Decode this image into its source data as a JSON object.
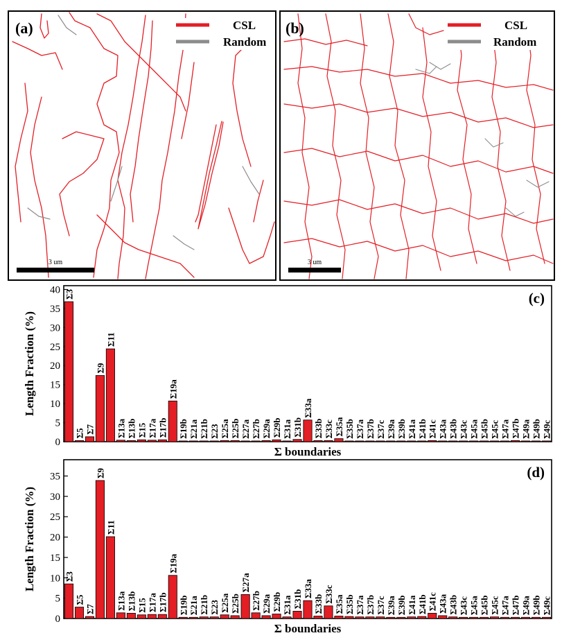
{
  "panel_a": {
    "label": "(a)",
    "legend": [
      {
        "name": "CSL",
        "color": "#e31e24"
      },
      {
        "name": "Random",
        "color": "#8c8c8c"
      }
    ],
    "scale_bar": "3 um"
  },
  "panel_b": {
    "label": "(b)",
    "legend": [
      {
        "name": "CSL",
        "color": "#e31e24"
      },
      {
        "name": "Random",
        "color": "#8c8c8c"
      }
    ],
    "scale_bar": "3 um"
  },
  "chart_data": [
    {
      "type": "bar",
      "label": "(c)",
      "xlabel": "Σ boundaries",
      "ylabel": "Length Fraction (%)",
      "ylim": [
        0,
        41
      ],
      "yticks": [
        0,
        5,
        10,
        15,
        20,
        25,
        30,
        35,
        40
      ],
      "bar_color": "#e31e24",
      "categories": [
        "Σ3",
        "Σ5",
        "Σ7",
        "Σ9",
        "Σ11",
        "Σ13a",
        "Σ13b",
        "Σ15",
        "Σ17a",
        "Σ17b",
        "Σ19a",
        "Σ19b",
        "Σ21a",
        "Σ21b",
        "Σ23",
        "Σ25a",
        "Σ25b",
        "Σ27a",
        "Σ27b",
        "Σ29a",
        "Σ29b",
        "Σ31a",
        "Σ31b",
        "Σ33a",
        "Σ33b",
        "Σ33c",
        "Σ35a",
        "Σ35b",
        "Σ37a",
        "Σ37b",
        "Σ37c",
        "Σ39a",
        "Σ39b",
        "Σ41a",
        "Σ41b",
        "Σ41c",
        "Σ43a",
        "Σ43b",
        "Σ43c",
        "Σ45a",
        "Σ45b",
        "Σ45c",
        "Σ47a",
        "Σ47b",
        "Σ49a",
        "Σ49b",
        "Σ49c"
      ],
      "values": [
        36.8,
        0.3,
        1.3,
        17.4,
        24.4,
        0.4,
        0.3,
        0.5,
        0.4,
        0.5,
        10.7,
        0.2,
        0.2,
        0.2,
        0.2,
        0.3,
        0.3,
        0.2,
        0.2,
        0.3,
        0.5,
        0.2,
        0.6,
        5.7,
        0.3,
        0.3,
        0.8,
        0.2,
        0.2,
        0.2,
        0.2,
        0.2,
        0.2,
        0.2,
        0.2,
        0.3,
        0.2,
        0.2,
        0.2,
        0.2,
        0.2,
        0.2,
        0.2,
        0.3,
        0.2,
        0.2,
        0.2
      ]
    },
    {
      "type": "bar",
      "label": "(d)",
      "xlabel": "Σ boundaries",
      "ylabel": "Length Fraction (%)",
      "ylim": [
        0,
        39
      ],
      "yticks": [
        0,
        5,
        10,
        15,
        20,
        25,
        30,
        35
      ],
      "bar_color": "#e31e24",
      "categories": [
        "Σ3",
        "Σ5",
        "Σ7",
        "Σ9",
        "Σ11",
        "Σ13a",
        "Σ13b",
        "Σ15",
        "Σ17a",
        "Σ17b",
        "Σ19a",
        "Σ19b",
        "Σ21a",
        "Σ21b",
        "Σ23",
        "Σ25a",
        "Σ25b",
        "Σ27a",
        "Σ27b",
        "Σ29a",
        "Σ29b",
        "Σ31a",
        "Σ31b",
        "Σ33a",
        "Σ33b",
        "Σ33c",
        "Σ35a",
        "Σ35b",
        "Σ37a",
        "Σ37b",
        "Σ37c",
        "Σ39a",
        "Σ39b",
        "Σ41a",
        "Σ41b",
        "Σ41c",
        "Σ43a",
        "Σ43b",
        "Σ43c",
        "Σ45a",
        "Σ45b",
        "Σ45c",
        "Σ47a",
        "Σ47b",
        "Σ49a",
        "Σ49b",
        "Σ49c"
      ],
      "values": [
        8.5,
        2.8,
        0.5,
        33.9,
        20.1,
        1.4,
        1.3,
        0.9,
        1.0,
        1.0,
        10.6,
        0.3,
        0.3,
        0.4,
        0.4,
        0.9,
        0.7,
        5.9,
        1.4,
        0.7,
        1.1,
        0.4,
        1.8,
        4.4,
        0.6,
        3.1,
        0.6,
        0.5,
        0.4,
        0.4,
        0.4,
        0.3,
        0.3,
        0.4,
        0.5,
        1.3,
        0.7,
        0.4,
        0.3,
        0.3,
        0.3,
        0.4,
        0.3,
        0.3,
        0.3,
        0.3,
        0.3
      ]
    }
  ]
}
